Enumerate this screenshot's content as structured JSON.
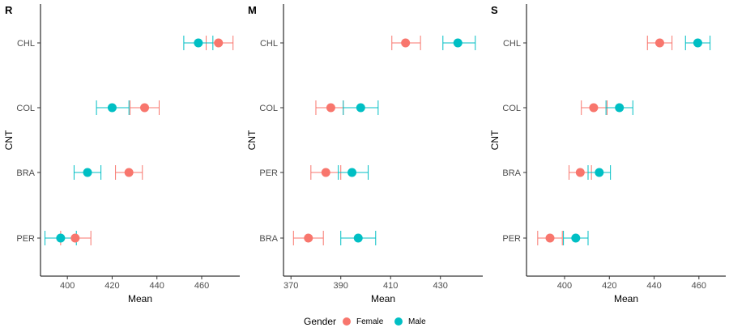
{
  "chart_data": [
    {
      "type": "scatter",
      "panel_label": "R",
      "xlabel": "Mean",
      "ylabel": "CNT",
      "xlim": [
        388,
        477
      ],
      "xticks": [
        400,
        420,
        440,
        460
      ],
      "categories": [
        "PER",
        "BRA",
        "COL",
        "CHL"
      ],
      "grid": false,
      "series": [
        {
          "name": "Female",
          "color": "#F8766D",
          "mean": [
            403.5,
            427.5,
            434.5,
            467.5
          ],
          "lower": [
            397,
            421.5,
            428,
            462
          ],
          "upper": [
            410.5,
            433.5,
            441,
            474
          ]
        },
        {
          "name": "Male",
          "color": "#00BFC4",
          "mean": [
            397,
            409,
            420,
            458.5
          ],
          "lower": [
            390,
            403,
            413,
            452
          ],
          "upper": [
            404,
            415,
            427.5,
            465
          ]
        }
      ]
    },
    {
      "type": "scatter",
      "panel_label": "M",
      "xlabel": "Mean",
      "ylabel": "CNT",
      "xlim": [
        367,
        447
      ],
      "xticks": [
        370,
        390,
        410,
        430
      ],
      "categories": [
        "BRA",
        "PER",
        "COL",
        "CHL"
      ],
      "grid": false,
      "series": [
        {
          "name": "Female",
          "color": "#F8766D",
          "mean": [
            377,
            384,
            386,
            416
          ],
          "lower": [
            371,
            378,
            380,
            410.5
          ],
          "upper": [
            383,
            390,
            391,
            422
          ]
        },
        {
          "name": "Male",
          "color": "#00BFC4",
          "mean": [
            397,
            394.5,
            398,
            437
          ],
          "lower": [
            390,
            389,
            391,
            431
          ],
          "upper": [
            404,
            401,
            405,
            444
          ]
        }
      ]
    },
    {
      "type": "scatter",
      "panel_label": "S",
      "xlabel": "Mean",
      "ylabel": "CNT",
      "xlim": [
        383,
        472
      ],
      "xticks": [
        400,
        420,
        440,
        460
      ],
      "categories": [
        "PER",
        "BRA",
        "COL",
        "CHL"
      ],
      "grid": false,
      "series": [
        {
          "name": "Female",
          "color": "#F8766D",
          "mean": [
            393.5,
            407,
            413,
            442.5
          ],
          "lower": [
            388,
            402,
            407.5,
            437
          ],
          "upper": [
            399,
            412,
            419,
            448
          ]
        },
        {
          "name": "Male",
          "color": "#00BFC4",
          "mean": [
            405,
            415.5,
            424.5,
            459.5
          ],
          "lower": [
            399.5,
            410.5,
            418.5,
            454
          ],
          "upper": [
            410.5,
            420.5,
            430.5,
            465
          ]
        }
      ]
    }
  ],
  "legend": {
    "title": "Gender",
    "position": "bottom",
    "items": [
      {
        "label": "Female",
        "color": "#F8766D"
      },
      {
        "label": "Male",
        "color": "#00BFC4"
      }
    ]
  }
}
